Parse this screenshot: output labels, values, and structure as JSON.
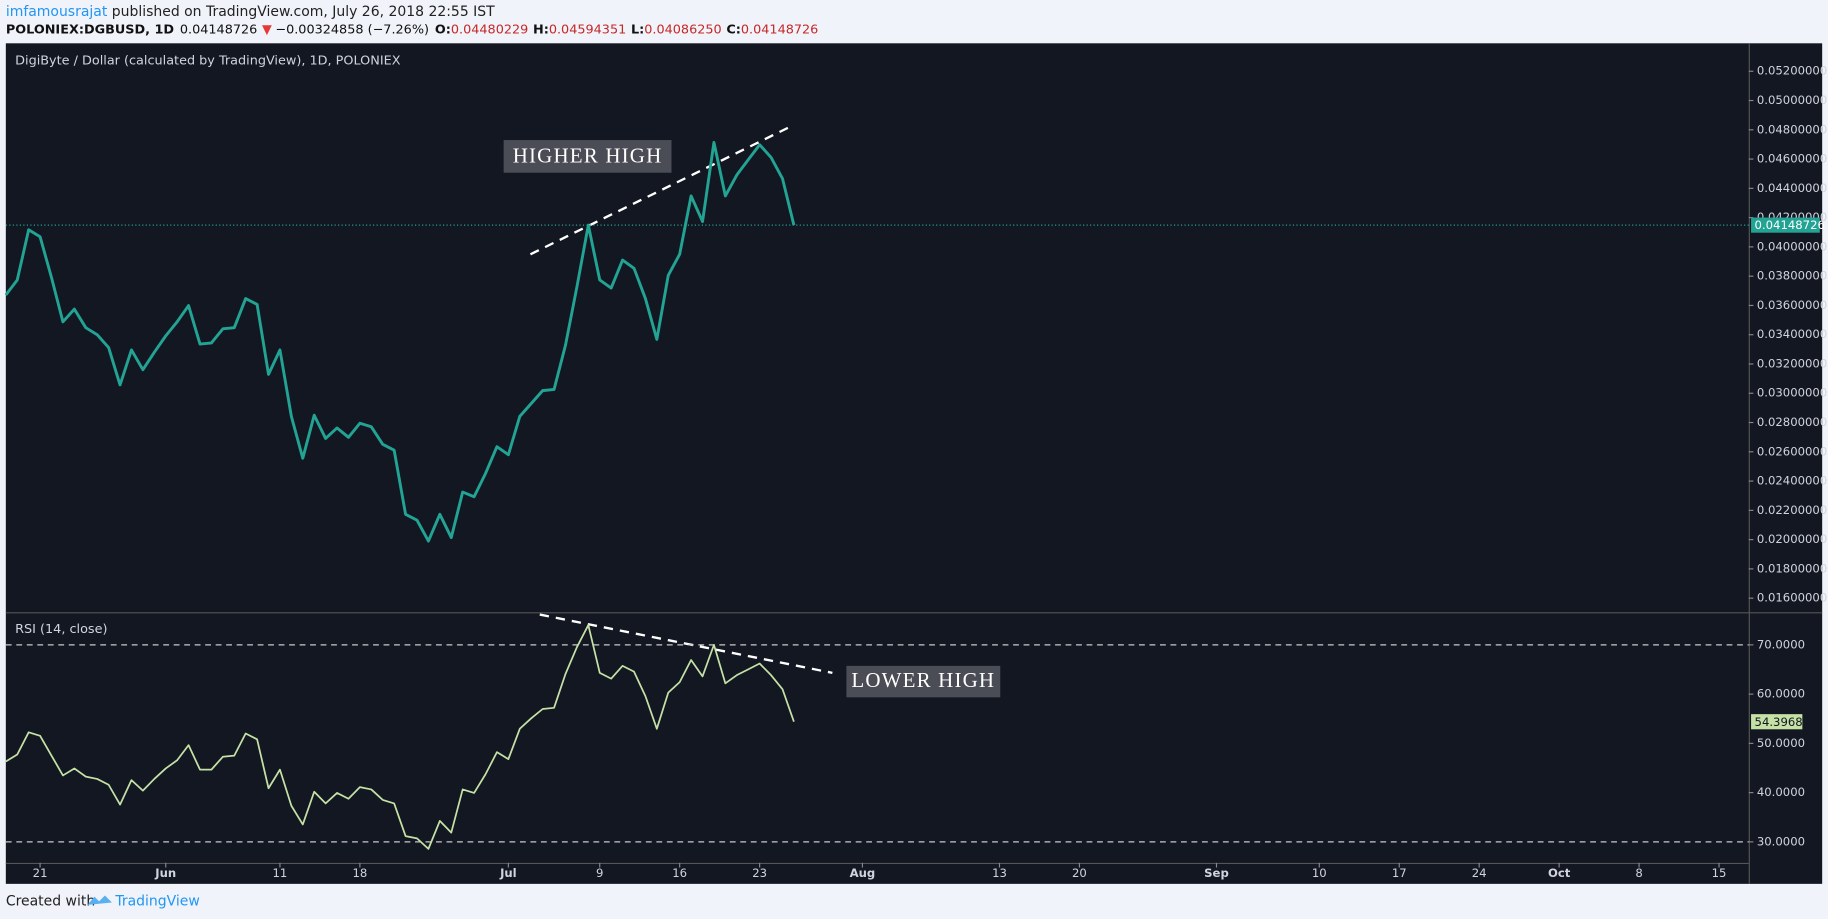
{
  "header": {
    "author": "imfamousrajat",
    "published": " published on TradingView.com, July 26, 2018 22:55 IST",
    "symbol": "POLONIEX:DGBUSD, 1D",
    "last": "0.04148726",
    "arrow": "▼",
    "change": "−0.00324858 (−7.26%)",
    "o_label": "O:",
    "o": "0.04480229",
    "h_label": "H:",
    "h": "0.04594351",
    "l_label": "L:",
    "l": "0.04086250",
    "c_label": "C:",
    "c": "0.04148726"
  },
  "footer": {
    "created": "Created with",
    "brand": "TradingView"
  },
  "chart_data": [
    {
      "type": "line",
      "title": "DigiByte / Dollar (calculated by TradingView), 1D, POLONIEX",
      "color": "#22a393",
      "annotation": "HIGHER HIGH",
      "x": [
        0,
        1,
        2,
        3,
        4,
        5,
        6,
        7,
        8,
        9,
        10,
        11,
        12,
        13,
        14,
        15,
        16,
        17,
        18,
        19,
        20,
        21,
        22,
        23,
        24,
        25,
        26,
        27,
        28,
        29,
        30,
        31,
        32,
        33,
        34,
        35,
        36,
        37,
        38,
        39,
        40,
        41,
        42,
        43,
        44,
        45,
        46,
        47,
        48,
        49,
        50,
        51,
        52,
        53,
        54,
        55,
        56,
        57,
        58,
        59,
        60,
        61,
        62,
        63,
        64,
        65,
        66,
        67,
        68,
        69
      ],
      "values": [
        0.03671,
        0.03774,
        0.04117,
        0.04069,
        0.0379,
        0.03488,
        0.03575,
        0.03448,
        0.034,
        0.03312,
        0.03057,
        0.03296,
        0.03161,
        0.0328,
        0.03392,
        0.03488,
        0.03599,
        0.03336,
        0.03344,
        0.0344,
        0.03448,
        0.03647,
        0.03607,
        0.03129,
        0.03296,
        0.02842,
        0.02556,
        0.0285,
        0.02691,
        0.02763,
        0.02699,
        0.02795,
        0.02771,
        0.02651,
        0.02611,
        0.02173,
        0.02133,
        0.0199,
        0.02173,
        0.02014,
        0.02325,
        0.02293,
        0.02452,
        0.02635,
        0.0258,
        0.02842,
        0.0293,
        0.03018,
        0.03026,
        0.03328,
        0.03726,
        0.04149,
        0.03774,
        0.03719,
        0.0391,
        0.03854,
        0.03647,
        0.03368,
        0.03806,
        0.0395,
        0.04348,
        0.04173,
        0.04714,
        0.04348,
        0.04491,
        0.04595,
        0.04698,
        0.04611,
        0.04467,
        0.04148726
      ],
      "xlim": [
        0,
        152.6
      ],
      "xticks": [
        {
          "value": 3,
          "label": "21"
        },
        {
          "value": 14,
          "label": "Jun"
        },
        {
          "value": 24,
          "label": "11"
        },
        {
          "value": 31,
          "label": "18"
        },
        {
          "value": 44,
          "label": "Jul"
        },
        {
          "value": 52,
          "label": "9"
        },
        {
          "value": 59,
          "label": "16"
        },
        {
          "value": 66,
          "label": "23"
        },
        {
          "value": 75,
          "label": "Aug"
        },
        {
          "value": 87,
          "label": "13"
        },
        {
          "value": 94,
          "label": "20"
        },
        {
          "value": 106,
          "label": "Sep"
        },
        {
          "value": 115,
          "label": "10"
        },
        {
          "value": 122,
          "label": "17"
        },
        {
          "value": 129,
          "label": "24"
        },
        {
          "value": 136,
          "label": "Oct"
        },
        {
          "value": 143,
          "label": "8"
        },
        {
          "value": 150,
          "label": "15"
        }
      ],
      "ylim": [
        0.01504,
        0.05383
      ],
      "yticks": [
        {
          "value": 0.016,
          "label": "0.01600000"
        },
        {
          "value": 0.018,
          "label": "0.01800000"
        },
        {
          "value": 0.02,
          "label": "0.02000000"
        },
        {
          "value": 0.022,
          "label": "0.02200000"
        },
        {
          "value": 0.024,
          "label": "0.02400000"
        },
        {
          "value": 0.026,
          "label": "0.02600000"
        },
        {
          "value": 0.028,
          "label": "0.02800000"
        },
        {
          "value": 0.03,
          "label": "0.03000000"
        },
        {
          "value": 0.032,
          "label": "0.03200000"
        },
        {
          "value": 0.034,
          "label": "0.03400000"
        },
        {
          "value": 0.036,
          "label": "0.03600000"
        },
        {
          "value": 0.038,
          "label": "0.03800000"
        },
        {
          "value": 0.04,
          "label": "0.04000000"
        },
        {
          "value": 0.042,
          "label": "0.04200000"
        },
        {
          "value": 0.044,
          "label": "0.04400000"
        },
        {
          "value": 0.046,
          "label": "0.04600000"
        },
        {
          "value": 0.048,
          "label": "0.04800000"
        },
        {
          "value": 0.05,
          "label": "0.05000000"
        },
        {
          "value": 0.052,
          "label": "0.05200000"
        }
      ]
    },
    {
      "type": "line",
      "title": "RSI (14, close)",
      "color": "#c5e1a5",
      "annotation": "LOWER HIGH",
      "x": [
        0,
        1,
        2,
        3,
        4,
        5,
        6,
        7,
        8,
        9,
        10,
        11,
        12,
        13,
        14,
        15,
        16,
        17,
        18,
        19,
        20,
        21,
        22,
        23,
        24,
        25,
        26,
        27,
        28,
        29,
        30,
        31,
        32,
        33,
        34,
        35,
        36,
        37,
        38,
        39,
        40,
        41,
        42,
        43,
        44,
        45,
        46,
        47,
        48,
        49,
        50,
        51,
        52,
        53,
        54,
        55,
        56,
        57,
        58,
        59,
        60,
        61,
        62,
        63,
        64,
        65,
        66,
        67,
        68,
        69
      ],
      "values": [
        46.33,
        47.75,
        52.25,
        51.54,
        47.51,
        43.49,
        44.91,
        43.25,
        42.78,
        41.6,
        37.57,
        42.54,
        40.41,
        42.78,
        44.91,
        46.57,
        49.64,
        44.67,
        44.67,
        47.28,
        47.51,
        52.01,
        50.83,
        40.89,
        44.67,
        37.34,
        33.55,
        40.18,
        37.81,
        39.94,
        38.76,
        41.12,
        40.65,
        38.52,
        37.81,
        31.18,
        30.71,
        28.58,
        34.26,
        31.89,
        40.65,
        39.94,
        43.73,
        48.22,
        46.8,
        52.96,
        55.09,
        56.98,
        57.22,
        64.08,
        69.53,
        74.02,
        64.32,
        63.14,
        65.74,
        64.56,
        59.59,
        52.96,
        60.3,
        62.43,
        66.92,
        63.61,
        70,
        62.19,
        63.85,
        65.03,
        66.21,
        63.85,
        61.01,
        54.3968
      ],
      "xlim": [
        0,
        152.6
      ],
      "ylim": [
        25.74,
        76.39
      ],
      "yticks": [
        {
          "value": 30,
          "label": "30.0000"
        },
        {
          "value": 40,
          "label": "40.0000"
        },
        {
          "value": 50,
          "label": "50.0000"
        },
        {
          "value": 60,
          "label": "60.0000"
        },
        {
          "value": 70,
          "label": "70.0000"
        }
      ],
      "levels": [
        70,
        30
      ]
    }
  ]
}
